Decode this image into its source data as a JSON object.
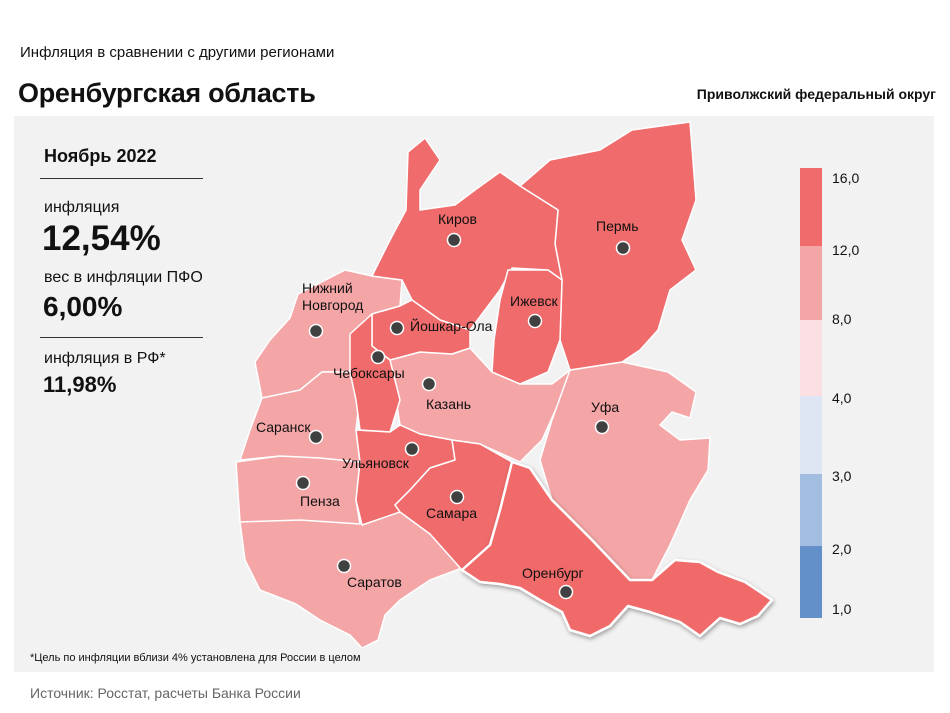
{
  "header": {
    "subtitle": "Инфляция  в сравнении  с другими  регионами",
    "title": "Оренбургская область",
    "district": "Приволжский федеральный округ"
  },
  "stats": {
    "period": "Ноябрь 2022",
    "inflation_label": "инфляция",
    "inflation_value": "12,54%",
    "weight_label": "вес в инфляции  ПФО",
    "weight_value": "6,00%",
    "rf_label": "инфляция  в РФ*",
    "rf_value": "11,98%"
  },
  "footnote": "*Цель по инфляции вблизи 4% установлена для России в целом",
  "source": "Источник: Росстат, расчеты Банка России",
  "legend": {
    "ticks": [
      "16,0",
      "12,0",
      "8,0",
      "4,0",
      "3,0",
      "2,0",
      "1,0"
    ],
    "colors": [
      "#f06b6b",
      "#f4a5a6",
      "#fbdfe2",
      "#dde6f2",
      "#a3bde0",
      "#6490c9"
    ]
  },
  "colors": {
    "high": "#f06b6b",
    "mid": "#f4a5a6",
    "highlight_border": "#ffffff",
    "dot": "#404040"
  },
  "regions": [
    {
      "name": "Киров",
      "category": "12,0–16,0"
    },
    {
      "name": "Пермь",
      "category": "12,0–16,0"
    },
    {
      "name": "Нижний Новгород",
      "category": "8,0–12,0"
    },
    {
      "name": "Йошкар-Ола",
      "category": "12,0–16,0"
    },
    {
      "name": "Ижевск",
      "category": "12,0–16,0"
    },
    {
      "name": "Чебоксары",
      "category": "12,0–16,0"
    },
    {
      "name": "Казань",
      "category": "8,0–12,0"
    },
    {
      "name": "Уфа",
      "category": "8,0–12,0"
    },
    {
      "name": "Саранск",
      "category": "8,0–12,0"
    },
    {
      "name": "Ульяновск",
      "category": "12,0–16,0"
    },
    {
      "name": "Пенза",
      "category": "8,0–12,0"
    },
    {
      "name": "Самара",
      "category": "12,0–16,0"
    },
    {
      "name": "Саратов",
      "category": "8,0–12,0"
    },
    {
      "name": "Оренбург",
      "category": "12,0–16,0"
    }
  ],
  "city_labels": {
    "kirov": "Киров",
    "perm": "Пермь",
    "nn_line1": "Нижний",
    "nn_line2": "Новгород",
    "yoshkar": "Йошкар-Ола",
    "izhevsk": "Ижевск",
    "cheb": "Чебоксары",
    "kazan": "Казань",
    "ufa": "Уфа",
    "saransk": "Саранск",
    "ulyanovsk": "Ульяновск",
    "penza": "Пенза",
    "samara": "Самара",
    "saratov": "Саратов",
    "orenburg": "Оренбург"
  }
}
